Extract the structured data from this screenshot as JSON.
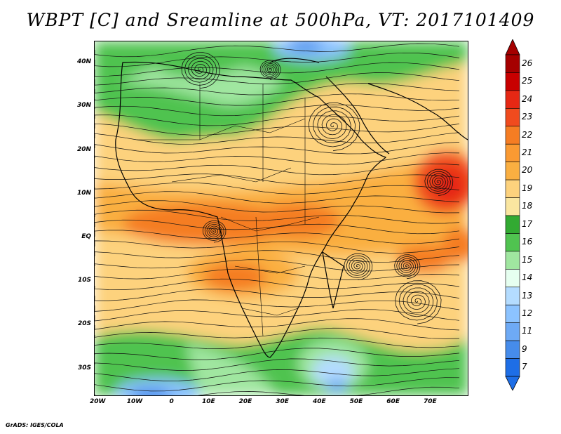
{
  "title": "WBPT [C] and Sreamline at 500hPa, VT: 2017101409",
  "footer": "GrADS: IGES/COLA",
  "map": {
    "lat_ticks": [
      "40N",
      "30N",
      "20N",
      "10N",
      "EQ",
      "10S",
      "20S",
      "30S"
    ],
    "lon_ticks": [
      "20W",
      "10W",
      "0",
      "10E",
      "20E",
      "30E",
      "40E",
      "50E",
      "60E",
      "70E"
    ],
    "lon_range": [
      -21,
      80
    ],
    "lat_range": [
      -36,
      45
    ],
    "field": "wet-bulb potential temperature",
    "overlay": "streamlines"
  },
  "colorbar": {
    "labels": [
      "26",
      "25",
      "24",
      "23",
      "22",
      "21",
      "20",
      "19",
      "18",
      "17",
      "16",
      "15",
      "14",
      "13",
      "12",
      "11",
      "9",
      "7"
    ],
    "colors": [
      "#a50000",
      "#c80000",
      "#e62814",
      "#f04b1e",
      "#f57d23",
      "#fa9a32",
      "#faaf41",
      "#fdd27d",
      "#fae6a0",
      "#32aa32",
      "#50c350",
      "#a0e6a0",
      "#e6fff0",
      "#b4dcff",
      "#8cc3ff",
      "#6eaaf5",
      "#468ceb",
      "#1e6ee6"
    ]
  }
}
